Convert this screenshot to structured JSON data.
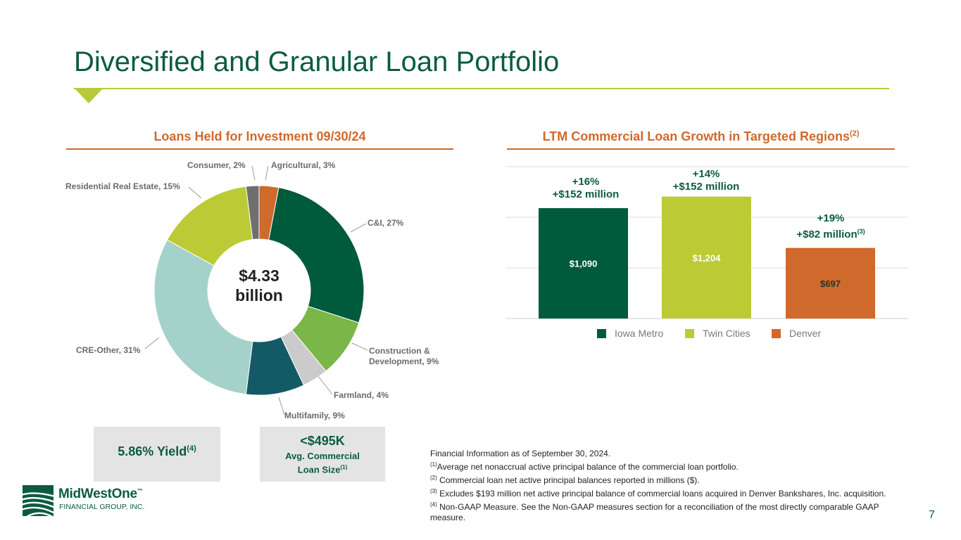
{
  "title": "Diversified and Granular Loan Portfolio",
  "left_section_title": "Loans Held for Investment 09/30/24",
  "right_section": {
    "title": "LTM Commercial Loan Growth in Targeted Regions",
    "title_sup": "(2)"
  },
  "colors": {
    "brand_green": "#0b5c3f",
    "accent_lime": "#b8ca3a",
    "accent_orange": "#d0692c"
  },
  "chart_data": [
    {
      "type": "pie",
      "title": "Loans Held for Investment 09/30/24",
      "center_label": {
        "line1": "$4.33",
        "line2": "billion"
      },
      "slices": [
        {
          "label": "Agricultural, 3%",
          "value": 3,
          "color": "#d0692c"
        },
        {
          "label": "C&I, 27%",
          "value": 27,
          "color": "#005a3c"
        },
        {
          "label": "Construction & Development, 9%",
          "line1": "Construction &",
          "line2": "Development, 9%",
          "value": 9,
          "color": "#7ab648"
        },
        {
          "label": "Farmland, 4%",
          "value": 4,
          "color": "#cbcbcb"
        },
        {
          "label": "Multifamily, 9%",
          "value": 9,
          "color": "#135a66"
        },
        {
          "label": "CRE-Other, 31%",
          "value": 31,
          "color": "#a5d1cb"
        },
        {
          "label": "Residential Real Estate, 15%",
          "value": 15,
          "color": "#bccb35"
        },
        {
          "label": "Consumer, 2%",
          "value": 2,
          "color": "#6f6f6f"
        }
      ]
    },
    {
      "type": "bar",
      "title": "LTM Commercial Loan Growth in Targeted Regions",
      "categories": [
        "Iowa Metro",
        "Twin Cities",
        "Denver"
      ],
      "values": [
        1090,
        1204,
        697
      ],
      "value_labels": [
        "$1,090",
        "$1,204",
        "$697"
      ],
      "colors": [
        "#005a3c",
        "#bccb35",
        "#d0692c"
      ],
      "label_colors": [
        "#ffffff",
        "#ffffff",
        "#1f3a2b"
      ],
      "annotations": [
        {
          "pct": "+16%",
          "amount": "+$152 million",
          "sup": ""
        },
        {
          "pct": "+14%",
          "amount": "+$152 million",
          "sup": ""
        },
        {
          "pct": "+19%",
          "amount": "+$82 million",
          "sup": "(3)"
        }
      ],
      "ylim": [
        0,
        1500
      ],
      "grid": true,
      "legend_position": "bottom"
    }
  ],
  "stats": {
    "yield_value": "5.86% Yield",
    "yield_sup": "(4)",
    "loan_size_value": "<$495K",
    "loan_size_label_line1": "Avg. Commercial",
    "loan_size_label_line2": "Loan Size",
    "loan_size_sup": "(1)"
  },
  "footnotes": {
    "intro": "Financial Information as of September 30, 2024.",
    "items": [
      {
        "marker": "(1)",
        "text": "Average net nonaccrual active principal balance of the commercial loan portfolio."
      },
      {
        "marker": "(2)",
        "text": " Commercial loan net active principal balances reported in millions ($)."
      },
      {
        "marker": "(3)",
        "text": " Excludes $193 million net active principal balance of commercial loans acquired in Denver Bankshares, Inc. acquisition."
      },
      {
        "marker": "(4)",
        "text": " Non-GAAP Measure. See the Non-GAAP measures section for a reconciliation of the most directly comparable GAAP measure."
      }
    ]
  },
  "page_number": "7",
  "logo": {
    "name": "MidWestOne",
    "trademark": "™",
    "subtitle": "FINANCIAL GROUP, INC.",
    "icon": "striped-hills-logo-icon"
  }
}
